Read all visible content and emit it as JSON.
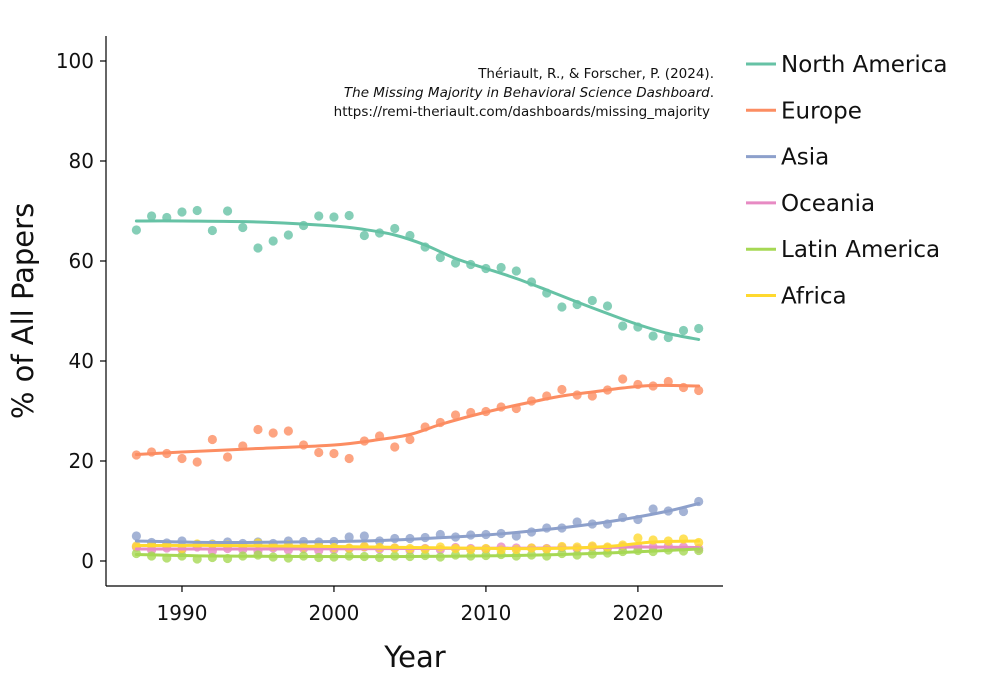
{
  "chart_data": {
    "type": "scatter",
    "xlabel": "Year",
    "ylabel": "% of All Papers",
    "xlim": [
      1985,
      2025.6
    ],
    "ylim": [
      -5,
      105
    ],
    "xticks": [
      1990,
      2000,
      2010,
      2020
    ],
    "yticks": [
      0,
      20,
      40,
      60,
      80,
      100
    ],
    "grid": false,
    "legend_position": "right",
    "citation": {
      "line1": "Thériault, R., & Forscher, P. (2024).",
      "line2_italic": "The Missing Majority in Behavioral Science Dashboard",
      "line2_suffix": ".",
      "line3": "https://remi-theriault.com/dashboards/missing_majority"
    },
    "years": [
      1987,
      1988,
      1989,
      1990,
      1991,
      1992,
      1993,
      1994,
      1995,
      1996,
      1997,
      1998,
      1999,
      2000,
      2001,
      2002,
      2003,
      2004,
      2005,
      2006,
      2007,
      2008,
      2009,
      2010,
      2011,
      2012,
      2013,
      2014,
      2015,
      2016,
      2017,
      2018,
      2019,
      2020,
      2021,
      2022,
      2023,
      2024
    ],
    "series": [
      {
        "name": "North America",
        "color": "#66c2a5",
        "points": [
          66.2,
          69.0,
          68.7,
          69.8,
          70.1,
          66.1,
          70.0,
          66.7,
          62.6,
          64.0,
          65.2,
          67.1,
          69.0,
          68.8,
          69.1,
          65.1,
          65.6,
          66.5,
          65.1,
          62.8,
          60.7,
          59.6,
          59.3,
          58.5,
          58.7,
          58.0,
          55.8,
          53.6,
          50.8,
          51.3,
          52.1,
          51.0,
          47.0,
          46.8,
          45.0,
          44.7,
          46.1,
          46.5
        ],
        "trend": [
          [
            1987,
            68.0
          ],
          [
            1990,
            68.0
          ],
          [
            1995,
            67.8
          ],
          [
            2000,
            67.0
          ],
          [
            2002,
            66.3
          ],
          [
            2004,
            65.2
          ],
          [
            2006,
            63.2
          ],
          [
            2008,
            60.5
          ],
          [
            2010,
            58.5
          ],
          [
            2012,
            56.5
          ],
          [
            2014,
            54.2
          ],
          [
            2016,
            51.8
          ],
          [
            2018,
            49.5
          ],
          [
            2020,
            47.3
          ],
          [
            2022,
            45.5
          ],
          [
            2024,
            44.3
          ]
        ]
      },
      {
        "name": "Europe",
        "color": "#fc8d62",
        "points": [
          21.2,
          21.8,
          21.5,
          20.5,
          19.8,
          24.3,
          20.8,
          23.0,
          26.3,
          25.6,
          26.0,
          23.2,
          21.7,
          21.5,
          20.5,
          24.0,
          25.0,
          22.8,
          24.3,
          26.8,
          27.7,
          29.2,
          29.7,
          29.9,
          30.8,
          30.5,
          32.0,
          33.0,
          34.3,
          33.2,
          33.0,
          34.2,
          36.4,
          35.3,
          35.0,
          35.9,
          34.7,
          34.1
        ],
        "trend": [
          [
            1987,
            21.3
          ],
          [
            1990,
            21.8
          ],
          [
            1995,
            22.5
          ],
          [
            2000,
            23.2
          ],
          [
            2003,
            24.3
          ],
          [
            2005,
            25.3
          ],
          [
            2007,
            27.3
          ],
          [
            2009,
            29.0
          ],
          [
            2011,
            30.5
          ],
          [
            2013,
            31.8
          ],
          [
            2015,
            33.0
          ],
          [
            2017,
            33.8
          ],
          [
            2019,
            34.6
          ],
          [
            2021,
            35.1
          ],
          [
            2024,
            35.0
          ]
        ]
      },
      {
        "name": "Asia",
        "color": "#8da0cb",
        "points": [
          5.0,
          3.7,
          3.6,
          4.0,
          3.3,
          3.4,
          3.8,
          3.5,
          3.8,
          3.5,
          4.0,
          3.9,
          3.8,
          3.9,
          4.8,
          5.0,
          4.0,
          4.5,
          4.5,
          4.7,
          5.3,
          4.8,
          5.2,
          5.3,
          5.5,
          5.0,
          5.8,
          6.6,
          6.6,
          7.8,
          7.4,
          7.4,
          8.7,
          8.3,
          10.4,
          10.0,
          9.9,
          11.9
        ],
        "trend": [
          [
            1987,
            4.0
          ],
          [
            1992,
            3.7
          ],
          [
            1997,
            3.8
          ],
          [
            2002,
            4.0
          ],
          [
            2006,
            4.5
          ],
          [
            2010,
            5.2
          ],
          [
            2013,
            6.0
          ],
          [
            2016,
            7.0
          ],
          [
            2019,
            8.3
          ],
          [
            2022,
            10.0
          ],
          [
            2024,
            11.5
          ]
        ]
      },
      {
        "name": "Oceania",
        "color": "#e78ac3",
        "points": [
          2.8,
          2.2,
          2.6,
          2.3,
          2.8,
          2.0,
          2.5,
          2.3,
          2.0,
          2.6,
          2.2,
          2.5,
          2.1,
          2.3,
          2.5,
          2.8,
          2.4,
          2.6,
          2.2,
          2.5,
          2.3,
          2.7,
          2.5,
          2.4,
          2.8,
          2.6,
          2.6,
          2.5,
          2.7,
          2.5,
          2.8,
          2.6,
          2.9,
          2.9,
          2.8,
          3.0,
          2.8,
          2.5
        ],
        "trend": [
          [
            1987,
            2.4
          ],
          [
            1995,
            2.4
          ],
          [
            2005,
            2.5
          ],
          [
            2015,
            2.6
          ],
          [
            2020,
            2.8
          ],
          [
            2024,
            2.7
          ]
        ]
      },
      {
        "name": "Latin America",
        "color": "#a6d854",
        "points": [
          1.5,
          1.0,
          0.6,
          1.0,
          0.4,
          0.7,
          0.5,
          1.0,
          1.2,
          0.8,
          0.6,
          1.0,
          0.7,
          0.8,
          1.0,
          0.9,
          0.7,
          1.0,
          0.9,
          1.1,
          0.8,
          1.2,
          1.0,
          1.1,
          1.3,
          1.0,
          1.2,
          1.0,
          1.5,
          1.2,
          1.4,
          1.6,
          1.9,
          2.1,
          1.9,
          2.2,
          2.0,
          2.1
        ],
        "trend": [
          [
            1987,
            1.3
          ],
          [
            1992,
            1.0
          ],
          [
            1998,
            0.9
          ],
          [
            2005,
            0.9
          ],
          [
            2012,
            1.1
          ],
          [
            2018,
            1.6
          ],
          [
            2024,
            2.4
          ]
        ]
      },
      {
        "name": "Africa",
        "color": "#ffd92f",
        "points": [
          3.0,
          3.1,
          3.3,
          2.5,
          3.4,
          3.3,
          3.2,
          3.0,
          3.6,
          2.9,
          3.3,
          2.8,
          3.0,
          2.7,
          2.6,
          2.9,
          2.7,
          2.6,
          2.5,
          2.4,
          2.8,
          2.5,
          2.3,
          2.5,
          2.2,
          2.3,
          2.6,
          2.4,
          2.9,
          2.8,
          3.0,
          2.8,
          3.2,
          4.6,
          4.2,
          4.0,
          4.4,
          3.7
        ],
        "trend": [
          [
            1987,
            3.1
          ],
          [
            1993,
            3.1
          ],
          [
            2000,
            2.9
          ],
          [
            2008,
            2.6
          ],
          [
            2014,
            2.5
          ],
          [
            2018,
            2.9
          ],
          [
            2021,
            3.8
          ],
          [
            2024,
            4.0
          ]
        ]
      }
    ]
  }
}
